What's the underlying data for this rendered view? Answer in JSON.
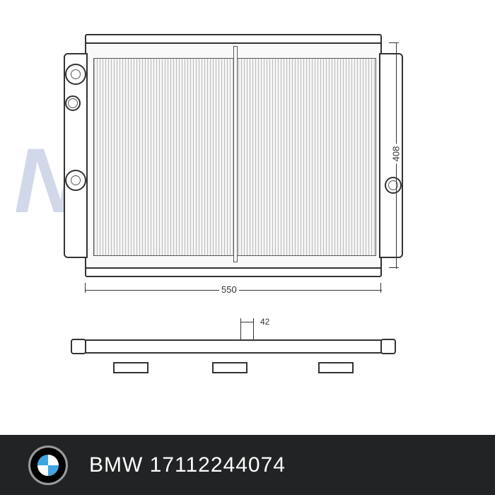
{
  "watermark": {
    "text": "Nissens",
    "reg": "®",
    "color": "rgba(70,100,170,0.25)"
  },
  "radiator": {
    "dims": {
      "width_mm": "550",
      "height_mm": "408",
      "depth_mm": "42"
    }
  },
  "footer": {
    "brand": "BMW",
    "part_number": "17112244074",
    "bg_color": "#222324",
    "logo_colors": {
      "blue": "#3da5e4",
      "white": "#ffffff",
      "ring": "#000000"
    }
  }
}
